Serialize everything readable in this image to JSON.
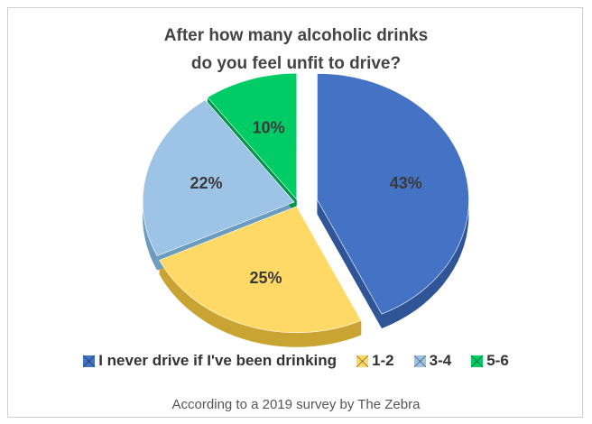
{
  "chart_data": {
    "type": "pie",
    "title": [
      "After how many alcoholic drinks",
      "do you feel unfit to drive?"
    ],
    "slices": [
      {
        "name": "I never drive if I've been drinking",
        "value": 43,
        "label": "43%",
        "color": "#4472C4",
        "side": "#2f5597",
        "exploded": true
      },
      {
        "name": "1-2",
        "value": 25,
        "label": "25%",
        "color": "#FFD966",
        "side": "#c9a433",
        "exploded": false
      },
      {
        "name": "3-4",
        "value": 22,
        "label": "22%",
        "color": "#9DC3E6",
        "side": "#6a9cbf",
        "exploded": false
      },
      {
        "name": "5-6",
        "value": 10,
        "label": "10%",
        "color": "#00CC66",
        "side": "#009446",
        "exploded": false
      }
    ],
    "legend_position": "bottom"
  },
  "source_note": "According to a 2019 survey by The Zebra"
}
